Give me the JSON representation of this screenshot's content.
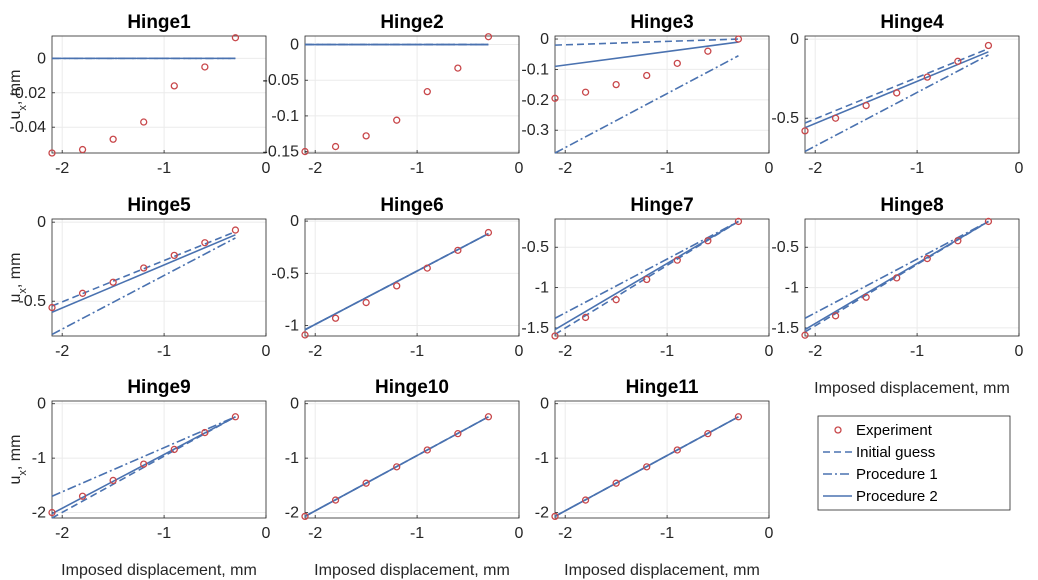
{
  "figure": {
    "common_x": [
      -2.1,
      -1.8,
      -1.5,
      -1.2,
      -0.9,
      -0.6,
      -0.3
    ],
    "shared_xlabel": "Imposed displacement, mm",
    "shared_ylabel_main": "u",
    "shared_ylabel_sub": "x",
    "shared_ylabel_unit": ", mm",
    "line_color": "#4a72b0",
    "marker_color": "#c8474a",
    "legend": {
      "placement": "lower-right",
      "items": [
        {
          "key": "experiment",
          "label": "Experiment",
          "style": "circle"
        },
        {
          "key": "initial",
          "label": "Initial guess",
          "style": "dashed"
        },
        {
          "key": "proc1",
          "label": "Procedure 1",
          "style": "dashdot"
        },
        {
          "key": "proc2",
          "label": "Procedure 2",
          "style": "solid"
        }
      ]
    }
  },
  "chart_data": [
    {
      "type": "line",
      "title": "Hinge1",
      "xlim": [
        -2.1,
        0
      ],
      "ylim": [
        -0.055,
        0.013
      ],
      "xticks": [
        -2,
        -1,
        0
      ],
      "xtick_labels": [
        "-2",
        "-1",
        "0"
      ],
      "yticks": [
        -0.04,
        -0.02,
        0
      ],
      "ytick_labels": [
        "-0.04",
        "-0.02",
        "0"
      ],
      "experiment": [
        -0.055,
        -0.053,
        -0.047,
        -0.037,
        -0.016,
        -0.005,
        0.012
      ],
      "initial": [
        0,
        0
      ],
      "proc1": [
        0,
        0
      ],
      "proc2": [
        0,
        0
      ]
    },
    {
      "type": "line",
      "title": "Hinge2",
      "xlim": [
        -2.1,
        0
      ],
      "ylim": [
        -0.152,
        0.012
      ],
      "xticks": [
        -2,
        -1,
        0
      ],
      "xtick_labels": [
        "-2",
        "-1",
        "0"
      ],
      "yticks": [
        -0.15,
        -0.1,
        -0.05,
        0
      ],
      "ytick_labels": [
        "-0.15",
        "-0.1",
        "-0.05",
        "0"
      ],
      "experiment": [
        -0.15,
        -0.143,
        -0.128,
        -0.106,
        -0.066,
        -0.033,
        0.011
      ],
      "initial": [
        0,
        0
      ],
      "proc1": [
        0,
        0
      ],
      "proc2": [
        0,
        0
      ]
    },
    {
      "type": "line",
      "title": "Hinge3",
      "xlim": [
        -2.1,
        0
      ],
      "ylim": [
        -0.375,
        0.01
      ],
      "xticks": [
        -2,
        -1,
        0
      ],
      "xtick_labels": [
        "-2",
        "-1",
        "0"
      ],
      "yticks": [
        -0.3,
        -0.2,
        -0.1,
        0
      ],
      "ytick_labels": [
        "-0.3",
        "-0.2",
        "-0.1",
        "0"
      ],
      "experiment": [
        -0.195,
        -0.175,
        -0.15,
        -0.12,
        -0.08,
        -0.04,
        0.0
      ],
      "initial": [
        -0.02,
        0.0
      ],
      "proc1": [
        -0.375,
        -0.055
      ],
      "proc2": [
        -0.09,
        -0.01
      ]
    },
    {
      "type": "line",
      "title": "Hinge4",
      "xlim": [
        -2.1,
        0
      ],
      "ylim": [
        -0.72,
        0.02
      ],
      "xticks": [
        -2,
        -1,
        0
      ],
      "xtick_labels": [
        "-2",
        "-1",
        "0"
      ],
      "yticks": [
        -0.5,
        0
      ],
      "ytick_labels": [
        "-0.5",
        "0"
      ],
      "experiment": [
        -0.58,
        -0.5,
        -0.42,
        -0.34,
        -0.24,
        -0.14,
        -0.04
      ],
      "initial": [
        -0.53,
        -0.06
      ],
      "proc1": [
        -0.71,
        -0.1
      ],
      "proc2": [
        -0.56,
        -0.08
      ]
    },
    {
      "type": "line",
      "title": "Hinge5",
      "xlim": [
        -2.1,
        0
      ],
      "ylim": [
        -0.72,
        0.02
      ],
      "xticks": [
        -2,
        -1,
        0
      ],
      "xtick_labels": [
        "-2",
        "-1",
        "0"
      ],
      "yticks": [
        -0.5,
        0
      ],
      "ytick_labels": [
        "-0.5",
        "0"
      ],
      "experiment": [
        -0.54,
        -0.45,
        -0.38,
        -0.29,
        -0.21,
        -0.13,
        -0.05
      ],
      "initial": [
        -0.53,
        -0.06
      ],
      "proc1": [
        -0.71,
        -0.1
      ],
      "proc2": [
        -0.57,
        -0.08
      ]
    },
    {
      "type": "line",
      "title": "Hinge6",
      "xlim": [
        -2.1,
        0
      ],
      "ylim": [
        -1.1,
        0.02
      ],
      "xticks": [
        -2,
        -1,
        0
      ],
      "xtick_labels": [
        "-2",
        "-1",
        "0"
      ],
      "yticks": [
        -1,
        -0.5,
        0
      ],
      "ytick_labels": [
        "-1",
        "-0.5",
        "0"
      ],
      "experiment": [
        -1.09,
        -0.93,
        -0.78,
        -0.62,
        -0.45,
        -0.28,
        -0.11
      ],
      "initial": [
        -1.04,
        -0.12
      ],
      "proc1": [
        -1.04,
        -0.12
      ],
      "proc2": [
        -1.04,
        -0.12
      ]
    },
    {
      "type": "line",
      "title": "Hinge7",
      "xlim": [
        -2.1,
        0
      ],
      "ylim": [
        -1.6,
        -0.15
      ],
      "xticks": [
        -2,
        -1,
        0
      ],
      "xtick_labels": [
        "-2",
        "-1",
        "0"
      ],
      "yticks": [
        -1.5,
        -1,
        -0.5
      ],
      "ytick_labels": [
        "-1.5",
        "-1",
        "-0.5"
      ],
      "experiment": [
        -1.6,
        -1.37,
        -1.15,
        -0.9,
        -0.66,
        -0.42,
        -0.18
      ],
      "initial": [
        -1.58,
        -0.18
      ],
      "proc1": [
        -1.38,
        -0.18
      ],
      "proc2": [
        -1.52,
        -0.18
      ]
    },
    {
      "type": "line",
      "title": "Hinge8",
      "xlim": [
        -2.1,
        0
      ],
      "ylim": [
        -1.6,
        -0.15
      ],
      "xticks": [
        -2,
        -1,
        0
      ],
      "xtick_labels": [
        "-2",
        "-1",
        "0"
      ],
      "yticks": [
        -1.5,
        -1,
        -0.5
      ],
      "ytick_labels": [
        "-1.5",
        "-1",
        "-0.5"
      ],
      "experiment": [
        -1.59,
        -1.35,
        -1.12,
        -0.88,
        -0.64,
        -0.42,
        -0.18
      ],
      "initial": [
        -1.55,
        -0.18
      ],
      "proc1": [
        -1.38,
        -0.18
      ],
      "proc2": [
        -1.52,
        -0.18
      ]
    },
    {
      "type": "line",
      "title": "Hinge9",
      "xlim": [
        -2.1,
        0
      ],
      "ylim": [
        -2.1,
        0.05
      ],
      "xticks": [
        -2,
        -1,
        0
      ],
      "xtick_labels": [
        "-2",
        "-1",
        "0"
      ],
      "yticks": [
        -2,
        -1,
        0
      ],
      "ytick_labels": [
        "-2",
        "-1",
        "0"
      ],
      "experiment": [
        -2.0,
        -1.7,
        -1.41,
        -1.11,
        -0.84,
        -0.53,
        -0.24
      ],
      "initial": [
        -2.1,
        -0.24
      ],
      "proc1": [
        -1.7,
        -0.24
      ],
      "proc2": [
        -2.02,
        -0.24
      ]
    },
    {
      "type": "line",
      "title": "Hinge10",
      "xlim": [
        -2.1,
        0
      ],
      "ylim": [
        -2.1,
        0.05
      ],
      "xticks": [
        -2,
        -1,
        0
      ],
      "xtick_labels": [
        "-2",
        "-1",
        "0"
      ],
      "yticks": [
        -2,
        -1,
        0
      ],
      "ytick_labels": [
        "-2",
        "-1",
        "0"
      ],
      "experiment": [
        -2.07,
        -1.77,
        -1.46,
        -1.16,
        -0.85,
        -0.55,
        -0.24
      ],
      "initial": [
        -2.07,
        -0.24
      ],
      "proc1": [
        -2.07,
        -0.24
      ],
      "proc2": [
        -2.07,
        -0.24
      ]
    },
    {
      "type": "line",
      "title": "Hinge11",
      "xlim": [
        -2.1,
        0
      ],
      "ylim": [
        -2.1,
        0.05
      ],
      "xticks": [
        -2,
        -1,
        0
      ],
      "xtick_labels": [
        "-2",
        "-1",
        "0"
      ],
      "yticks": [
        -2,
        -1,
        0
      ],
      "ytick_labels": [
        "-2",
        "-1",
        "0"
      ],
      "experiment": [
        -2.07,
        -1.77,
        -1.46,
        -1.16,
        -0.85,
        -0.55,
        -0.24
      ],
      "initial": [
        -2.07,
        -0.24
      ],
      "proc1": [
        -2.07,
        -0.24
      ],
      "proc2": [
        -2.07,
        -0.24
      ]
    }
  ]
}
